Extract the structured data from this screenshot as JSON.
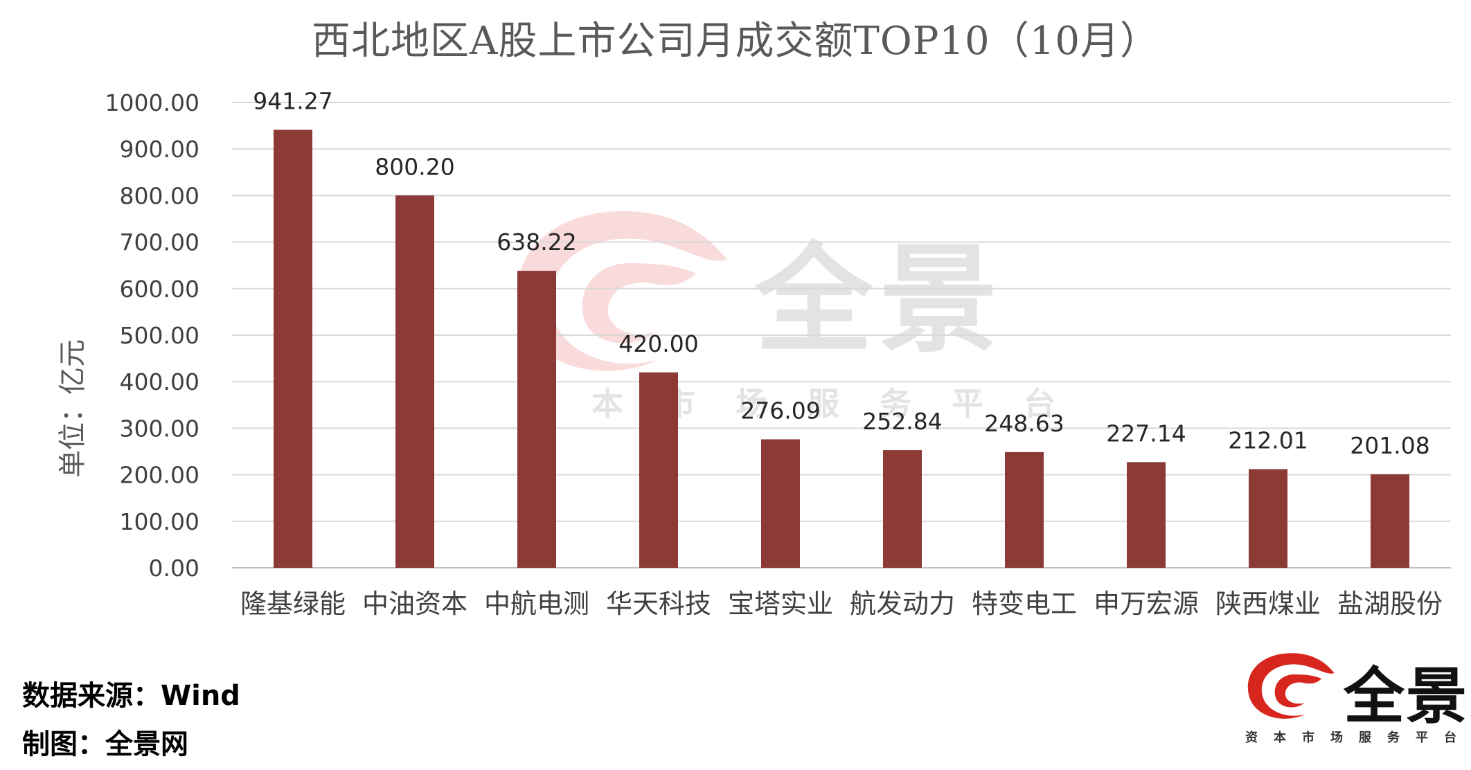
{
  "chart_data": {
    "type": "bar",
    "title": "西北地区A股上市公司月成交额TOP10（10月）",
    "ylabel": "单位：亿元",
    "xlabel": "",
    "categories": [
      "隆基绿能",
      "中油资本",
      "中航电测",
      "华天科技",
      "宝塔实业",
      "航发动力",
      "特变电工",
      "申万宏源",
      "陕西煤业",
      "盐湖股份"
    ],
    "values": [
      941.27,
      800.2,
      638.22,
      420.0,
      276.09,
      252.84,
      248.63,
      227.14,
      212.01,
      201.08
    ],
    "value_labels": [
      "941.27",
      "800.20",
      "638.22",
      "420.00",
      "276.09",
      "252.84",
      "248.63",
      "227.14",
      "212.01",
      "201.08"
    ],
    "y_ticks": [
      "0.00",
      "100.00",
      "200.00",
      "300.00",
      "400.00",
      "500.00",
      "600.00",
      "700.00",
      "800.00",
      "900.00",
      "1000.00"
    ],
    "ylim": [
      0,
      1000
    ],
    "grid": true,
    "legend": "none",
    "bar_color": "#8B3A36"
  },
  "footer": {
    "source": "数据来源：Wind",
    "maker": "制图：全景网"
  },
  "brand": {
    "name": "全景",
    "tagline": "资本市场服务平台",
    "accent_color": "#D7261E"
  }
}
